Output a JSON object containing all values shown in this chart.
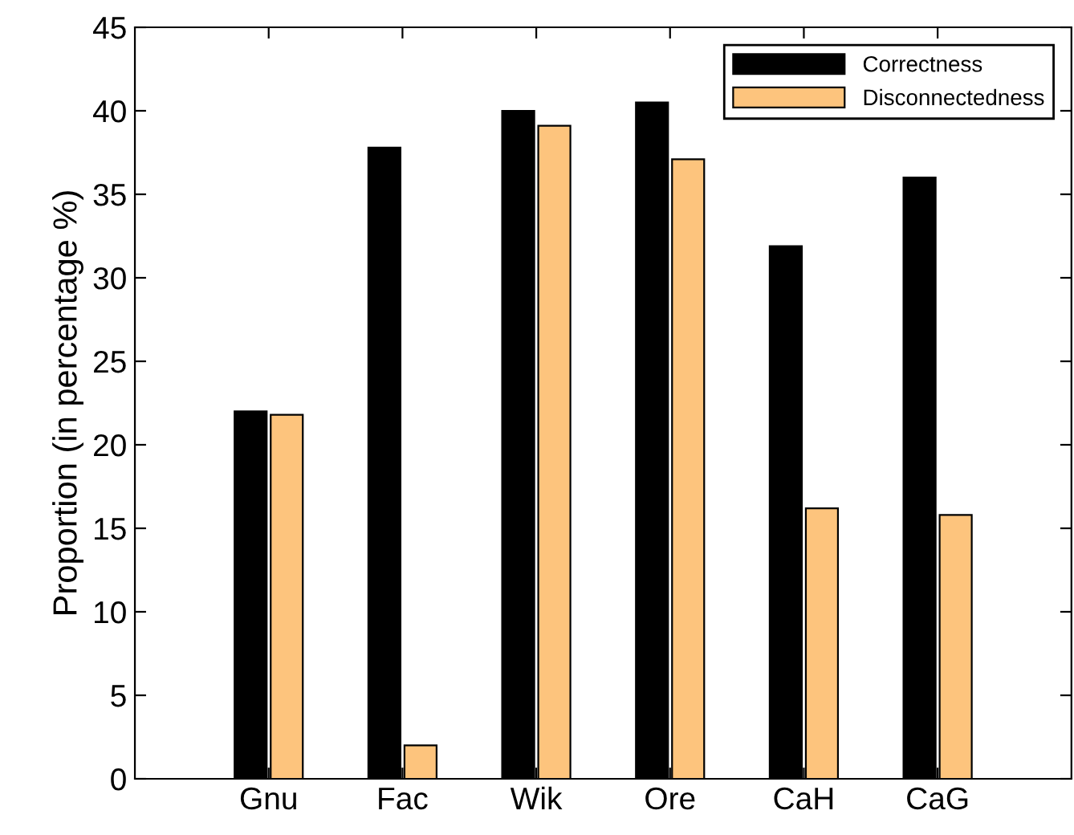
{
  "chart_data": {
    "type": "bar",
    "ylabel": "Proportion (in percentage %)",
    "categories": [
      "Gnu",
      "Fac",
      "Wik",
      "Ore",
      "CaH",
      "CaG"
    ],
    "series": [
      {
        "name": "Correctness",
        "color": "#000000",
        "values": [
          22,
          37.8,
          40,
          40.5,
          31.9,
          36
        ]
      },
      {
        "name": "Disconnectedness",
        "color": "#fdc47d",
        "values": [
          21.8,
          2,
          39.1,
          37.1,
          16.2,
          15.8
        ]
      }
    ],
    "ylim": [
      0,
      45
    ],
    "yticks": [
      0,
      5,
      10,
      15,
      20,
      25,
      30,
      35,
      40,
      45
    ],
    "grid": false,
    "legend": "top right"
  }
}
